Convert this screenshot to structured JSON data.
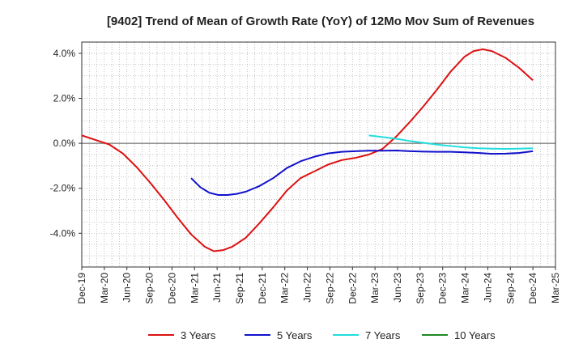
{
  "chart_data": {
    "type": "line",
    "title": "[9402]  Trend of Mean of Growth Rate (YoY) of 12Mo Mov Sum of Revenues",
    "xlabel": "",
    "ylabel": "",
    "ylim": [
      -5.5,
      4.5
    ],
    "y_ticks": [
      -4.0,
      -2.0,
      0.0,
      2.0,
      4.0
    ],
    "y_tick_labels": [
      "-4.0%",
      "-2.0%",
      "0.0%",
      "2.0%",
      "4.0%"
    ],
    "x_tick_labels": [
      "Dec-19",
      "Mar-20",
      "Jun-20",
      "Sep-20",
      "Dec-20",
      "Mar-21",
      "Jun-21",
      "Sep-21",
      "Dec-21",
      "Mar-22",
      "Jun-22",
      "Sep-22",
      "Dec-22",
      "Mar-23",
      "Jun-23",
      "Sep-23",
      "Dec-23",
      "Mar-24",
      "Jun-24",
      "Sep-24",
      "Dec-24",
      "Mar-25"
    ],
    "x_range_months": [
      0,
      63
    ],
    "grid": true,
    "legend_position": "bottom",
    "series": [
      {
        "name": "3 Years",
        "color": "#dd1111",
        "points": [
          [
            0,
            0.35
          ],
          [
            3,
            0.15
          ],
          [
            6,
            -0.05
          ],
          [
            9,
            -0.45
          ],
          [
            12,
            -1.05
          ],
          [
            15,
            -1.75
          ],
          [
            18,
            -2.5
          ],
          [
            21,
            -3.3
          ],
          [
            24,
            -4.05
          ],
          [
            27,
            -4.6
          ],
          [
            29,
            -4.8
          ],
          [
            31,
            -4.75
          ],
          [
            33,
            -4.6
          ],
          [
            36,
            -4.2
          ],
          [
            39,
            -3.55
          ],
          [
            42,
            -2.85
          ],
          [
            45,
            -2.1
          ],
          [
            48,
            -1.55
          ],
          [
            51,
            -1.25
          ],
          [
            54,
            -0.95
          ],
          [
            57,
            -0.75
          ],
          [
            60,
            -0.65
          ],
          [
            63,
            -0.5
          ],
          [
            66,
            -0.25
          ],
          [
            69,
            0.3
          ],
          [
            72,
            0.95
          ],
          [
            75,
            1.65
          ],
          [
            78,
            2.4
          ],
          [
            81,
            3.2
          ],
          [
            84,
            3.85
          ],
          [
            86,
            4.1
          ],
          [
            88,
            4.18
          ],
          [
            90,
            4.1
          ],
          [
            93,
            3.8
          ],
          [
            96,
            3.35
          ],
          [
            99,
            2.8
          ]
        ]
      },
      {
        "name": "5 Years",
        "color": "#1111cc",
        "points": [
          [
            24,
            -1.55
          ],
          [
            26,
            -1.95
          ],
          [
            28,
            -2.2
          ],
          [
            30,
            -2.3
          ],
          [
            32,
            -2.3
          ],
          [
            34,
            -2.25
          ],
          [
            36,
            -2.15
          ],
          [
            39,
            -1.9
          ],
          [
            42,
            -1.55
          ],
          [
            45,
            -1.1
          ],
          [
            48,
            -0.8
          ],
          [
            51,
            -0.6
          ],
          [
            54,
            -0.45
          ],
          [
            57,
            -0.38
          ],
          [
            60,
            -0.35
          ],
          [
            63,
            -0.33
          ],
          [
            66,
            -0.33
          ],
          [
            69,
            -0.32
          ],
          [
            72,
            -0.35
          ],
          [
            75,
            -0.37
          ],
          [
            78,
            -0.38
          ],
          [
            81,
            -0.38
          ],
          [
            84,
            -0.4
          ],
          [
            87,
            -0.43
          ],
          [
            90,
            -0.47
          ],
          [
            93,
            -0.46
          ],
          [
            96,
            -0.43
          ],
          [
            99,
            -0.35
          ]
        ]
      },
      {
        "name": "7 Years",
        "color": "#22dddd",
        "points": [
          [
            63,
            0.35
          ],
          [
            66,
            0.28
          ],
          [
            69,
            0.2
          ],
          [
            72,
            0.1
          ],
          [
            75,
            0.02
          ],
          [
            78,
            -0.06
          ],
          [
            81,
            -0.12
          ],
          [
            84,
            -0.18
          ],
          [
            87,
            -0.22
          ],
          [
            90,
            -0.24
          ],
          [
            93,
            -0.25
          ],
          [
            96,
            -0.24
          ],
          [
            99,
            -0.22
          ]
        ]
      },
      {
        "name": "10 Years",
        "color": "#228822",
        "points": []
      }
    ]
  }
}
